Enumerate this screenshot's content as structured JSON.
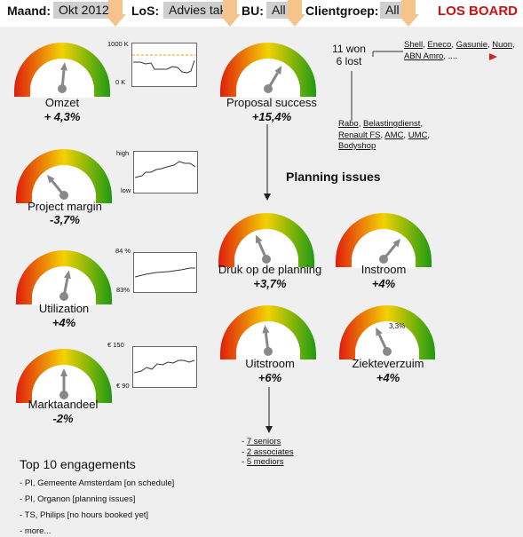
{
  "filters": [
    {
      "label": "Maand:",
      "value": "Okt 2012"
    },
    {
      "label": "LoS:",
      "value": "Advies tak"
    },
    {
      "label": "BU:",
      "value": "All"
    },
    {
      "label": "Clientgroep:",
      "value": "All"
    }
  ],
  "brand": "LOS BOARD",
  "gauges": {
    "omzet": {
      "label": "Omzet",
      "value": "+ 4,3%",
      "needle_pct": 0.53
    },
    "project_margin": {
      "label": "Project margin",
      "value": "-3,7%",
      "needle_pct": 0.28
    },
    "utilization": {
      "label": "Utilization",
      "value": "+4%",
      "needle_pct": 0.56
    },
    "marktaandeel": {
      "label": "Marktaandeel",
      "value": "-2%",
      "needle_pct": 0.5
    },
    "proposal_success": {
      "label": "Proposal success",
      "value": "+15,4%",
      "needle_pct": 0.67
    },
    "druk": {
      "label": "Druk op de planning",
      "value": "+3,7%",
      "needle_pct": 0.37
    },
    "instroom": {
      "label": "Instroom",
      "value": "+4%",
      "needle_pct": 0.72
    },
    "uitstroom": {
      "label": "Uitstroom",
      "value": "+6%",
      "needle_pct": 0.46
    },
    "ziekteverzuim": {
      "label": "Ziekteverzuim",
      "value": "+4%",
      "needle_pct": 0.36,
      "annotation": "3,3%"
    }
  },
  "sparklines": {
    "omzet": {
      "top": "1000 K",
      "bottom": "0 K"
    },
    "margin": {
      "top": "high",
      "bottom": "low"
    },
    "utilization": {
      "top": "84 %",
      "bottom": "83%"
    },
    "marktaandeel": {
      "top": "€ 150",
      "bottom": "€ 90"
    }
  },
  "proposals": {
    "won": "11 won",
    "lost": "6 lost"
  },
  "won_clients": [
    "Shell",
    "Eneco",
    "Gasunie",
    "Nuon",
    "ABN Amro"
  ],
  "won_more": ", ....",
  "lost_clients": [
    "Rabo",
    "Belastingdienst",
    "Renault FS",
    "AMC",
    "UMC",
    "Bodyshop"
  ],
  "planning_title": "Planning issues",
  "uitstroom_list": [
    "7 seniors",
    "2 associates",
    "5 mediors"
  ],
  "top10": {
    "title": "Top 10 engagements",
    "items": [
      "PI, Gemeente Amsterdam [on schedule]",
      "PI, Organon [planning issues]",
      "TS, Philips [no hours booked yet]",
      "more..."
    ]
  },
  "colors": {
    "red": "#e01e0e",
    "yellow": "#f3d200",
    "green": "#1f9a14",
    "arrow": "#f4c48c",
    "brand": "#cc1111"
  }
}
